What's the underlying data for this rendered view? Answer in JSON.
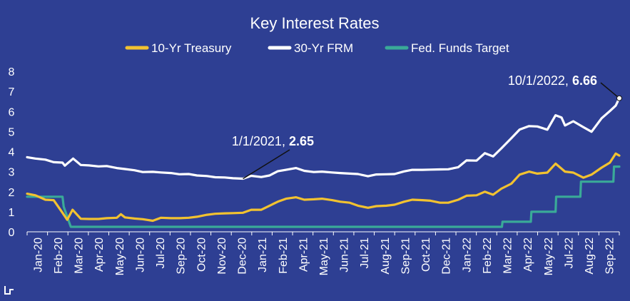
{
  "chart_data": {
    "type": "line",
    "title": "Key Interest Rates",
    "xlabel": "",
    "ylabel": "",
    "ylim": [
      0,
      8
    ],
    "yticks": [
      0,
      1,
      2,
      3,
      4,
      5,
      6,
      7,
      8
    ],
    "grid": false,
    "legend_position": "top-center",
    "x_tick_labels": [
      "Jan-20",
      "Feb-20",
      "Mar-20",
      "Apr-20",
      "May-20",
      "Jun-20",
      "Jul-20",
      "Sep-20",
      "Oct-20",
      "Nov-20",
      "Dec-20",
      "Jan-21",
      "Feb-21",
      "Apr-21",
      "May-21",
      "Jun-21",
      "Jul-21",
      "Aug-21",
      "Sep-21",
      "Oct-21",
      "Dec-21",
      "Jan-22",
      "Feb-22",
      "Mar-22",
      "Apr-22",
      "May-22",
      "Jul-22",
      "Aug-22",
      "Sep-22"
    ],
    "series": [
      {
        "name": "10-Yr Treasury",
        "color": "#f2c230",
        "points": [
          [
            "2020-01-01",
            1.9
          ],
          [
            "2020-01-15",
            1.82
          ],
          [
            "2020-02-01",
            1.6
          ],
          [
            "2020-02-15",
            1.58
          ],
          [
            "2020-03-01",
            0.95
          ],
          [
            "2020-03-09",
            0.6
          ],
          [
            "2020-03-18",
            1.1
          ],
          [
            "2020-04-01",
            0.65
          ],
          [
            "2020-04-15",
            0.64
          ],
          [
            "2020-05-01",
            0.64
          ],
          [
            "2020-05-15",
            0.68
          ],
          [
            "2020-06-01",
            0.7
          ],
          [
            "2020-06-08",
            0.88
          ],
          [
            "2020-06-15",
            0.72
          ],
          [
            "2020-07-01",
            0.66
          ],
          [
            "2020-07-15",
            0.63
          ],
          [
            "2020-08-01",
            0.55
          ],
          [
            "2020-08-15",
            0.7
          ],
          [
            "2020-09-01",
            0.68
          ],
          [
            "2020-09-15",
            0.68
          ],
          [
            "2020-10-01",
            0.7
          ],
          [
            "2020-10-15",
            0.75
          ],
          [
            "2020-11-01",
            0.85
          ],
          [
            "2020-11-15",
            0.9
          ],
          [
            "2020-12-01",
            0.92
          ],
          [
            "2020-12-15",
            0.93
          ],
          [
            "2021-01-01",
            0.95
          ],
          [
            "2021-01-15",
            1.1
          ],
          [
            "2021-02-01",
            1.1
          ],
          [
            "2021-02-15",
            1.3
          ],
          [
            "2021-03-01",
            1.5
          ],
          [
            "2021-03-15",
            1.65
          ],
          [
            "2021-04-01",
            1.72
          ],
          [
            "2021-04-15",
            1.6
          ],
          [
            "2021-05-01",
            1.62
          ],
          [
            "2021-05-15",
            1.65
          ],
          [
            "2021-06-01",
            1.58
          ],
          [
            "2021-06-15",
            1.5
          ],
          [
            "2021-07-01",
            1.45
          ],
          [
            "2021-07-15",
            1.3
          ],
          [
            "2021-08-01",
            1.2
          ],
          [
            "2021-08-15",
            1.28
          ],
          [
            "2021-09-01",
            1.3
          ],
          [
            "2021-09-15",
            1.35
          ],
          [
            "2021-10-01",
            1.5
          ],
          [
            "2021-10-15",
            1.6
          ],
          [
            "2021-11-01",
            1.58
          ],
          [
            "2021-11-15",
            1.55
          ],
          [
            "2021-12-01",
            1.45
          ],
          [
            "2021-12-15",
            1.45
          ],
          [
            "2022-01-01",
            1.6
          ],
          [
            "2022-01-15",
            1.8
          ],
          [
            "2022-02-01",
            1.82
          ],
          [
            "2022-02-15",
            2.0
          ],
          [
            "2022-03-01",
            1.85
          ],
          [
            "2022-03-15",
            2.15
          ],
          [
            "2022-04-01",
            2.4
          ],
          [
            "2022-04-15",
            2.85
          ],
          [
            "2022-05-01",
            3.0
          ],
          [
            "2022-05-15",
            2.9
          ],
          [
            "2022-06-01",
            2.95
          ],
          [
            "2022-06-15",
            3.4
          ],
          [
            "2022-07-01",
            3.0
          ],
          [
            "2022-07-15",
            2.95
          ],
          [
            "2022-08-01",
            2.7
          ],
          [
            "2022-08-15",
            2.85
          ],
          [
            "2022-09-01",
            3.2
          ],
          [
            "2022-09-15",
            3.45
          ],
          [
            "2022-09-25",
            3.9
          ],
          [
            "2022-10-01",
            3.8
          ]
        ]
      },
      {
        "name": "30-Yr FRM",
        "color": "#ffffff",
        "points": [
          [
            "2020-01-01",
            3.72
          ],
          [
            "2020-01-15",
            3.65
          ],
          [
            "2020-02-01",
            3.6
          ],
          [
            "2020-02-15",
            3.47
          ],
          [
            "2020-03-01",
            3.45
          ],
          [
            "2020-03-05",
            3.3
          ],
          [
            "2020-03-19",
            3.65
          ],
          [
            "2020-04-01",
            3.33
          ],
          [
            "2020-04-15",
            3.31
          ],
          [
            "2020-05-01",
            3.26
          ],
          [
            "2020-05-15",
            3.28
          ],
          [
            "2020-06-01",
            3.18
          ],
          [
            "2020-06-15",
            3.13
          ],
          [
            "2020-07-01",
            3.07
          ],
          [
            "2020-07-15",
            2.98
          ],
          [
            "2020-08-01",
            2.99
          ],
          [
            "2020-08-15",
            2.96
          ],
          [
            "2020-09-01",
            2.93
          ],
          [
            "2020-09-15",
            2.87
          ],
          [
            "2020-10-01",
            2.88
          ],
          [
            "2020-10-15",
            2.81
          ],
          [
            "2020-11-01",
            2.78
          ],
          [
            "2020-11-15",
            2.72
          ],
          [
            "2020-12-01",
            2.71
          ],
          [
            "2020-12-15",
            2.67
          ],
          [
            "2021-01-01",
            2.65
          ],
          [
            "2021-01-15",
            2.79
          ],
          [
            "2021-02-01",
            2.73
          ],
          [
            "2021-02-15",
            2.81
          ],
          [
            "2021-03-01",
            3.02
          ],
          [
            "2021-03-15",
            3.09
          ],
          [
            "2021-04-01",
            3.18
          ],
          [
            "2021-04-15",
            3.04
          ],
          [
            "2021-05-01",
            2.98
          ],
          [
            "2021-05-15",
            3.0
          ],
          [
            "2021-06-01",
            2.96
          ],
          [
            "2021-06-15",
            2.93
          ],
          [
            "2021-07-01",
            2.9
          ],
          [
            "2021-07-15",
            2.88
          ],
          [
            "2021-08-01",
            2.77
          ],
          [
            "2021-08-15",
            2.86
          ],
          [
            "2021-09-01",
            2.87
          ],
          [
            "2021-09-15",
            2.88
          ],
          [
            "2021-10-01",
            3.01
          ],
          [
            "2021-10-15",
            3.09
          ],
          [
            "2021-11-01",
            3.09
          ],
          [
            "2021-11-15",
            3.1
          ],
          [
            "2021-12-01",
            3.11
          ],
          [
            "2021-12-15",
            3.12
          ],
          [
            "2022-01-01",
            3.22
          ],
          [
            "2022-01-15",
            3.56
          ],
          [
            "2022-02-01",
            3.55
          ],
          [
            "2022-02-15",
            3.92
          ],
          [
            "2022-03-01",
            3.76
          ],
          [
            "2022-03-15",
            4.16
          ],
          [
            "2022-04-01",
            4.67
          ],
          [
            "2022-04-15",
            5.1
          ],
          [
            "2022-05-01",
            5.27
          ],
          [
            "2022-05-15",
            5.25
          ],
          [
            "2022-06-01",
            5.09
          ],
          [
            "2022-06-15",
            5.81
          ],
          [
            "2022-06-25",
            5.7
          ],
          [
            "2022-07-01",
            5.3
          ],
          [
            "2022-07-15",
            5.51
          ],
          [
            "2022-08-01",
            5.22
          ],
          [
            "2022-08-15",
            4.99
          ],
          [
            "2022-09-01",
            5.66
          ],
          [
            "2022-09-15",
            6.02
          ],
          [
            "2022-09-25",
            6.29
          ],
          [
            "2022-10-01",
            6.66
          ]
        ]
      },
      {
        "name": "Fed. Funds Target",
        "color": "#3aaa98",
        "points": [
          [
            "2020-01-01",
            1.75
          ],
          [
            "2020-03-01",
            1.75
          ],
          [
            "2020-03-03",
            1.25
          ],
          [
            "2020-03-15",
            0.25
          ],
          [
            "2022-03-16",
            0.25
          ],
          [
            "2022-03-17",
            0.5
          ],
          [
            "2022-05-04",
            0.5
          ],
          [
            "2022-05-05",
            1.0
          ],
          [
            "2022-06-15",
            1.0
          ],
          [
            "2022-06-16",
            1.75
          ],
          [
            "2022-07-27",
            1.75
          ],
          [
            "2022-07-28",
            2.5
          ],
          [
            "2022-09-21",
            2.5
          ],
          [
            "2022-09-22",
            3.25
          ],
          [
            "2022-10-01",
            3.25
          ]
        ]
      }
    ],
    "annotations": [
      {
        "label_prefix": "1/1/2021, ",
        "label_value": "2.65",
        "x": "2021-01-01",
        "y": 2.65,
        "series": "30-Yr FRM"
      },
      {
        "label_prefix": "10/1/2022, ",
        "label_value": "6.66",
        "x": "2022-10-01",
        "y": 6.66,
        "series": "30-Yr FRM"
      }
    ]
  }
}
